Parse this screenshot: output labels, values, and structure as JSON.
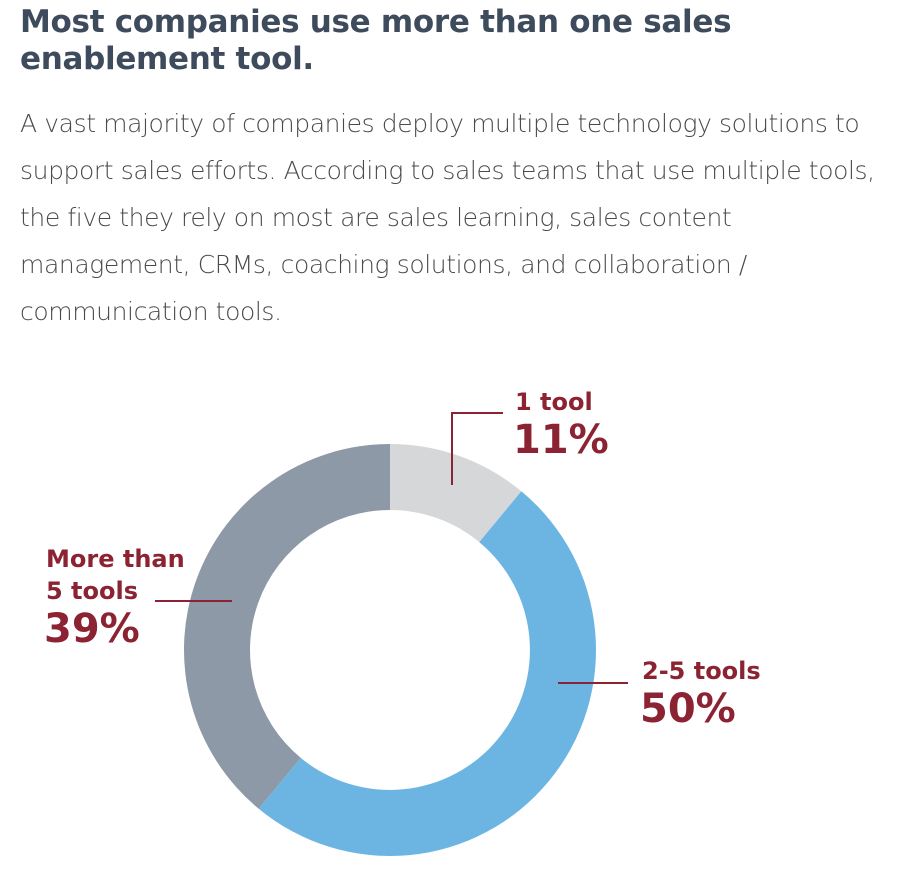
{
  "header": {
    "title": "Most companies use more than one sales enablement tool.",
    "description": "A vast majority of companies deploy multiple technology solutions to support sales efforts. According to sales teams that use multiple tools, the five they rely on most are sales learning, sales content management, CRMs, coaching solutions, and collaboration / communication tools."
  },
  "chart_data": {
    "type": "pie",
    "variant": "donut",
    "start": "12 o'clock, clockwise",
    "slices": [
      {
        "label_lines": [
          "1 tool"
        ],
        "value": 11,
        "value_label": "11%",
        "color": "#d6d7d9"
      },
      {
        "label_lines": [
          "2-5 tools"
        ],
        "value": 50,
        "value_label": "50%",
        "color": "#6cb5e3"
      },
      {
        "label_lines": [
          "More than",
          "5 tools"
        ],
        "value": 39,
        "value_label": "39%",
        "color": "#8d99a6"
      }
    ],
    "label_color": "#8b2332"
  }
}
